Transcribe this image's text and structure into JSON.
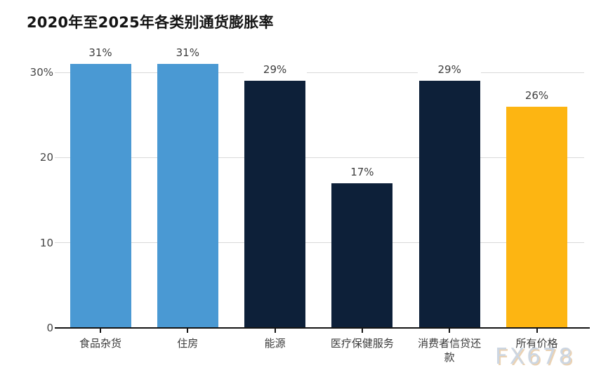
{
  "page": {
    "background": "#ffffff"
  },
  "chart_data": {
    "type": "bar",
    "title": "2020年至2025年各类别通货膨胀率",
    "categories": [
      "食品杂货",
      "住房",
      "能源",
      "医疗保健服务",
      "消费者信贷还款",
      "所有价格"
    ],
    "values": [
      31,
      31,
      29,
      17,
      29,
      26
    ],
    "value_labels": [
      "31%",
      "31%",
      "29%",
      "17%",
      "29%",
      "26%"
    ],
    "bar_colors": [
      "#4A99D3",
      "#4A99D3",
      "#0D2039",
      "#0D2039",
      "#0D2039",
      "#FDB512"
    ],
    "xlabel": "",
    "ylabel": "",
    "ylim": [
      0,
      30
    ],
    "yticks": [
      {
        "value": 0,
        "label": "0"
      },
      {
        "value": 10,
        "label": "10"
      },
      {
        "value": 20,
        "label": "20"
      },
      {
        "value": 30,
        "label": "30%"
      }
    ],
    "grid": true,
    "legend": "none",
    "colors": {
      "grid": "#d9d9d9",
      "axis": "#141414",
      "y_tick_label": "#454545",
      "value_label": "#3d3d3d",
      "category_label": "#3a3a3a"
    }
  },
  "watermark": {
    "text": "FX678",
    "color": "#ccd6e2",
    "shadow_color": "#deba8c"
  }
}
